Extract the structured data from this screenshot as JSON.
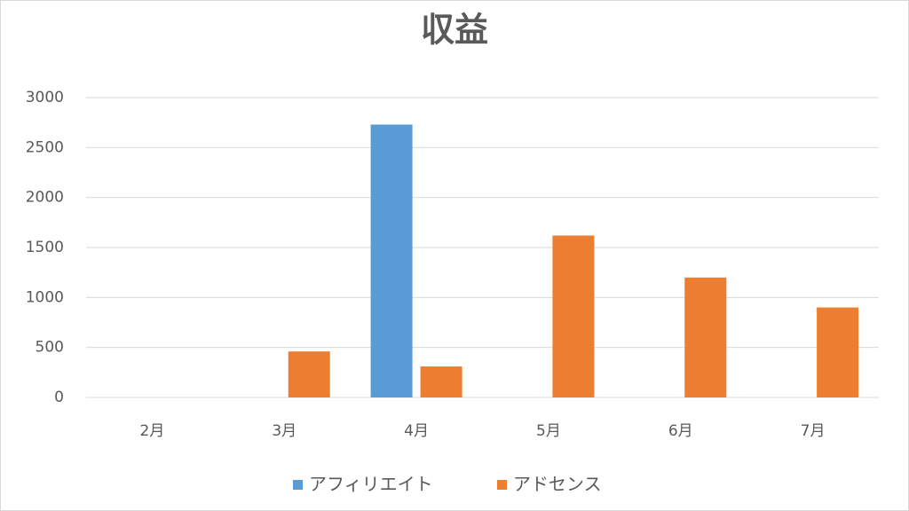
{
  "chart_data": {
    "type": "bar",
    "title": "収益",
    "categories": [
      "2月",
      "3月",
      "4月",
      "5月",
      "6月",
      "7月"
    ],
    "series": [
      {
        "name": "アフィリエイト",
        "color": "#5b9bd5",
        "values": [
          0,
          0,
          2730,
          0,
          0,
          0
        ]
      },
      {
        "name": "アドセンス",
        "color": "#ed7d31",
        "values": [
          0,
          460,
          310,
          1620,
          1200,
          900
        ]
      }
    ],
    "ylim": [
      0,
      3000
    ],
    "yticks": [
      0,
      500,
      1000,
      1500,
      2000,
      2500,
      3000
    ],
    "grid": true,
    "legend": "bottom"
  }
}
